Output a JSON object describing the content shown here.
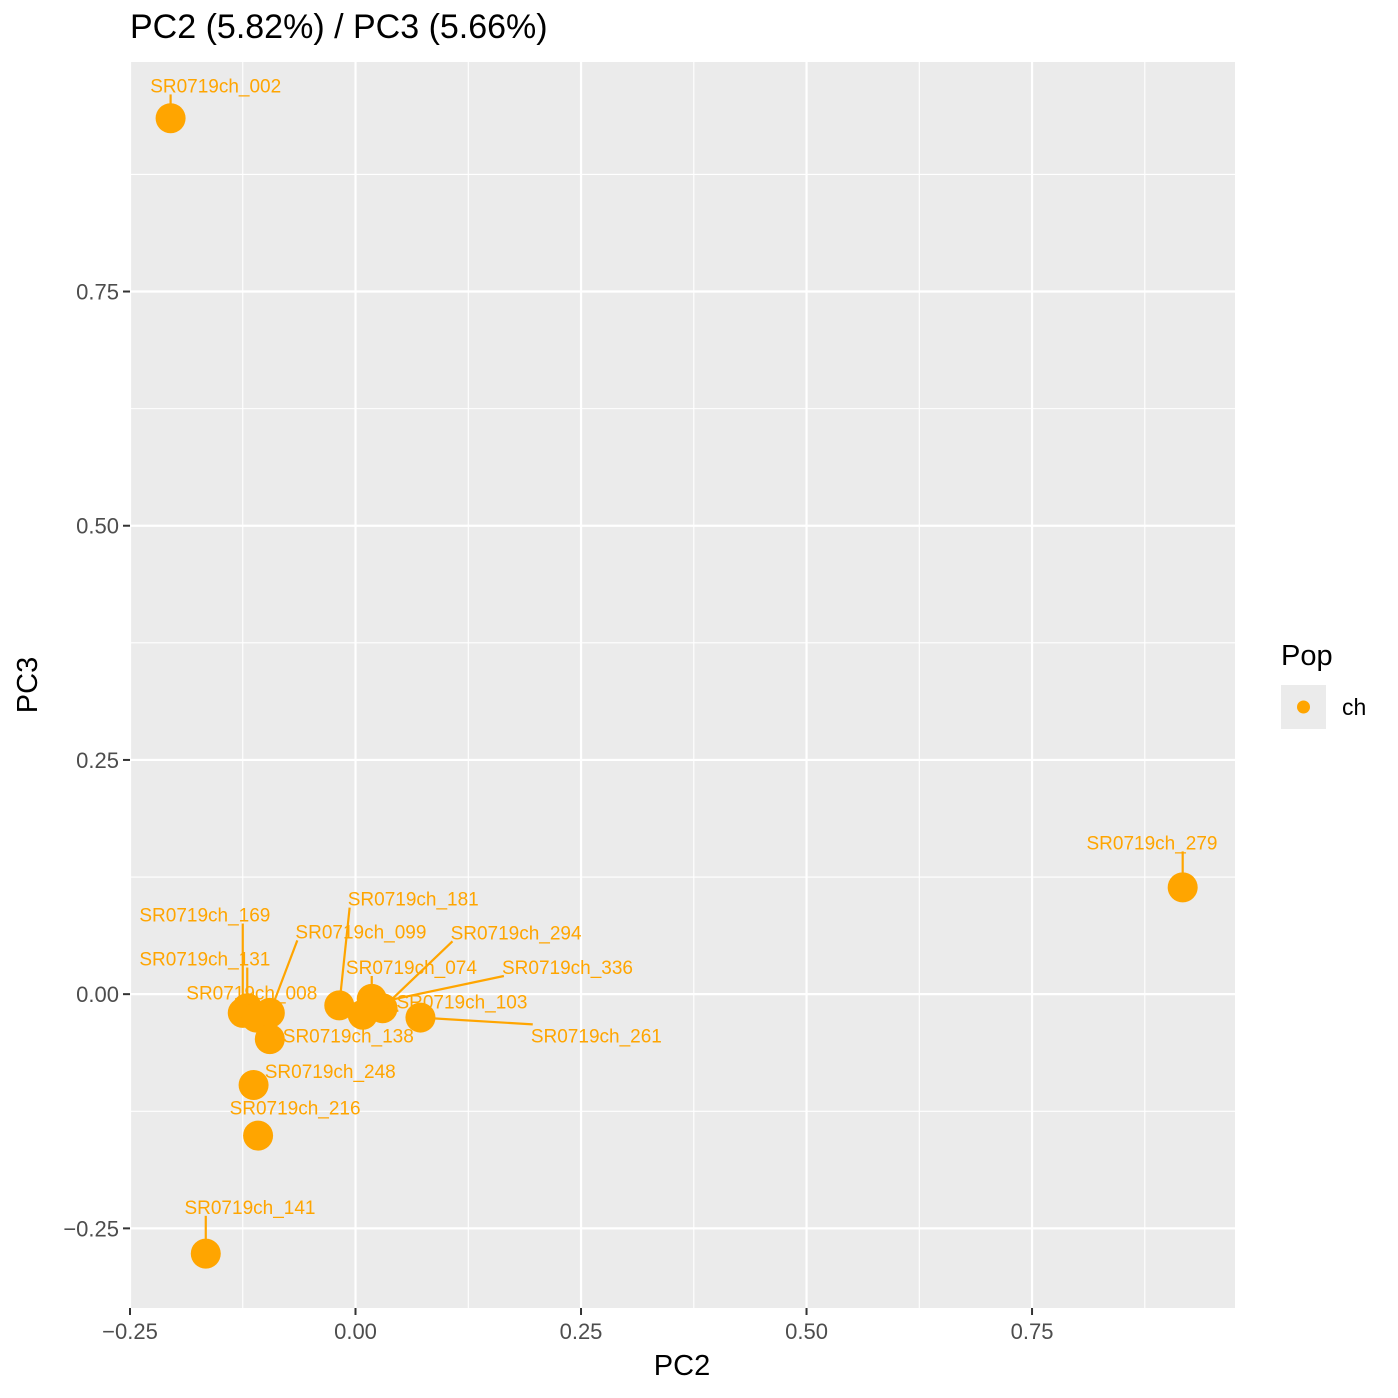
{
  "chart_data": {
    "type": "scatter",
    "title": "PC2 (5.82%) / PC3 (5.66%)",
    "xlabel": "PC2",
    "ylabel": "PC3",
    "xlim": [
      -0.25,
      0.975
    ],
    "ylim": [
      -0.335,
      0.995
    ],
    "x_ticks": [
      -0.25,
      0.0,
      0.25,
      0.5,
      0.75
    ],
    "x_tick_labels": [
      "−0.25",
      "0.00",
      "0.25",
      "0.50",
      "0.75"
    ],
    "y_ticks": [
      -0.25,
      0.0,
      0.25,
      0.5,
      0.75
    ],
    "y_tick_labels": [
      "−0.25",
      "0.00",
      "0.25",
      "0.50",
      "0.75"
    ],
    "grid": true,
    "panel_background": "#ebebeb",
    "color": "#ffa500",
    "legend": {
      "title": "Pop",
      "position": "right",
      "entries": [
        {
          "label": "ch",
          "color": "#ffa500"
        }
      ]
    },
    "points": [
      {
        "label": "SR0719ch_002",
        "x": -0.205,
        "y": 0.935,
        "lx": -0.155,
        "ly": 0.97
      },
      {
        "label": "SR0719ch_279",
        "x": 0.917,
        "y": 0.114,
        "lx": 0.883,
        "ly": 0.162
      },
      {
        "label": "SR0719ch_181",
        "x": -0.018,
        "y": -0.012,
        "lx": 0.064,
        "ly": 0.102
      },
      {
        "label": "SR0719ch_169",
        "x": -0.125,
        "y": -0.02,
        "lx": -0.167,
        "ly": 0.085
      },
      {
        "label": "SR0719ch_099",
        "x": -0.095,
        "y": -0.02,
        "lx": 0.006,
        "ly": 0.067
      },
      {
        "label": "SR0719ch_294",
        "x": 0.03,
        "y": -0.015,
        "lx": 0.178,
        "ly": 0.066
      },
      {
        "label": "SR0719ch_131",
        "x": -0.12,
        "y": -0.015,
        "lx": -0.167,
        "ly": 0.038
      },
      {
        "label": "SR0719ch_074",
        "x": 0.018,
        "y": -0.005,
        "lx": 0.062,
        "ly": 0.029
      },
      {
        "label": "SR0719ch_336",
        "x": 0.02,
        "y": -0.01,
        "lx": 0.235,
        "ly": 0.029
      },
      {
        "label": "SR0719ch_008",
        "x": -0.11,
        "y": -0.025,
        "lx": -0.115,
        "ly": 0.002
      },
      {
        "label": "SR0719ch_103",
        "x": 0.008,
        "y": -0.022,
        "lx": 0.118,
        "ly": -0.008
      },
      {
        "label": "SR0719ch_138",
        "x": -0.095,
        "y": -0.048,
        "lx": -0.008,
        "ly": -0.044
      },
      {
        "label": "SR0719ch_261",
        "x": 0.072,
        "y": -0.025,
        "lx": 0.267,
        "ly": -0.044
      },
      {
        "label": "SR0719ch_248",
        "x": -0.113,
        "y": -0.097,
        "lx": -0.028,
        "ly": -0.082
      },
      {
        "label": "SR0719ch_216",
        "x": -0.108,
        "y": -0.151,
        "lx": -0.067,
        "ly": -0.121
      },
      {
        "label": "SR0719ch_141",
        "x": -0.166,
        "y": -0.277,
        "lx": -0.117,
        "ly": -0.227
      }
    ]
  }
}
